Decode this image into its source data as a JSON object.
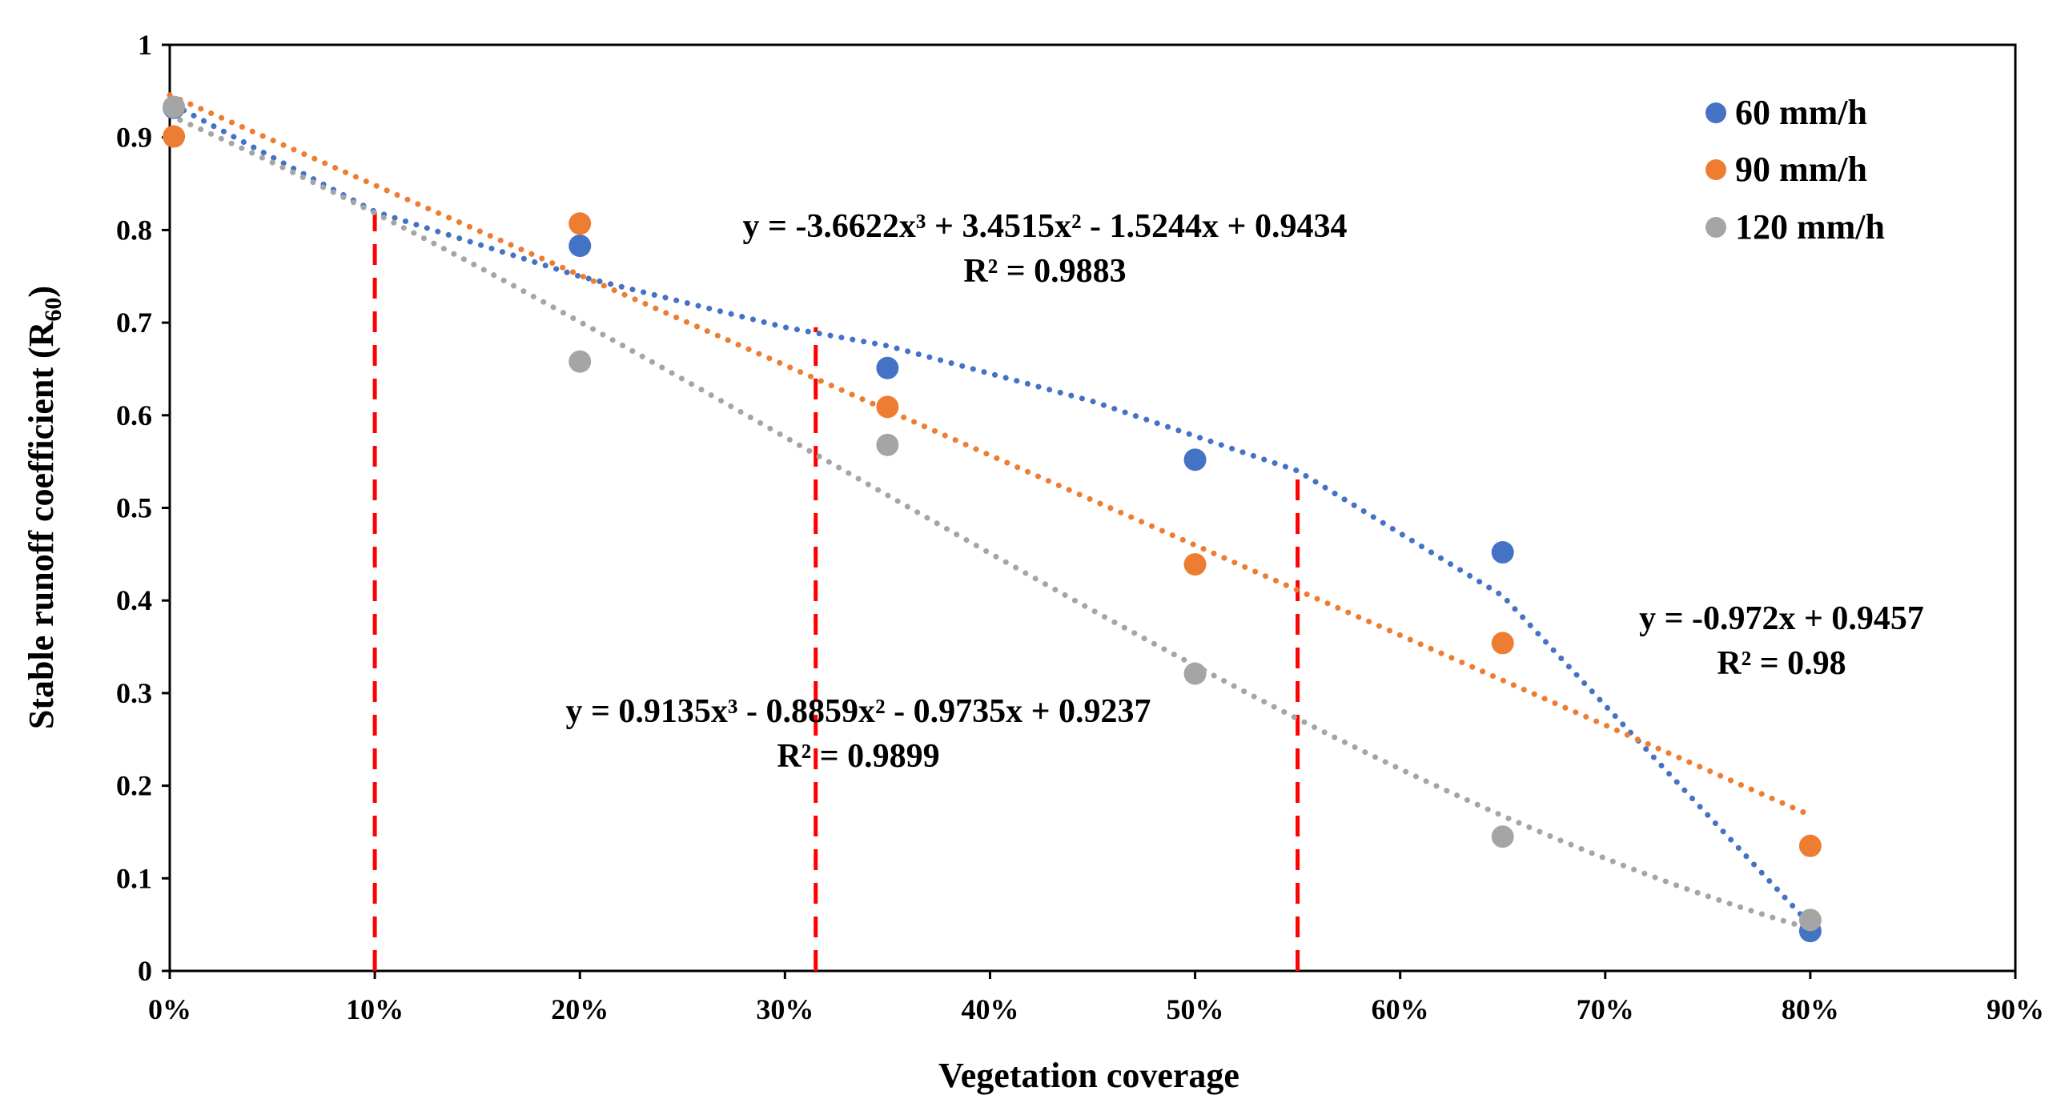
{
  "chart_data": {
    "type": "scatter",
    "title": "",
    "xlabel": "Vegetation coverage",
    "ylabel": "Stable runoff coefficient (R",
    "ylabel_subscript": "60",
    "ylabel_close": ")",
    "xlim": [
      0,
      0.9
    ],
    "ylim": [
      0,
      1
    ],
    "x_ticks": [
      0,
      0.1,
      0.2,
      0.3,
      0.4,
      0.5,
      0.6,
      0.7,
      0.8,
      0.9
    ],
    "x_tick_labels": [
      "0%",
      "10%",
      "20%",
      "30%",
      "40%",
      "50%",
      "60%",
      "70%",
      "80%",
      "90%"
    ],
    "y_ticks": [
      0,
      0.1,
      0.2,
      0.3,
      0.4,
      0.5,
      0.6,
      0.7,
      0.8,
      0.9,
      1
    ],
    "y_tick_labels": [
      "0",
      "0.1",
      "0.2",
      "0.3",
      "0.4",
      "0.5",
      "0.6",
      "0.7",
      "0.8",
      "0.9",
      "1"
    ],
    "grid": false,
    "legend_position": "top-right",
    "series": [
      {
        "name": "60 mm/h",
        "color": "#4472C4",
        "x": [
          0.002,
          0.2,
          0.35,
          0.5,
          0.65,
          0.8
        ],
        "y": [
          0.932,
          0.783,
          0.651,
          0.552,
          0.452,
          0.043
        ],
        "trendline": {
          "type": "piecewise",
          "x": [
            0.002,
            0.1,
            0.2,
            0.3,
            0.35,
            0.45,
            0.55,
            0.65,
            0.8
          ],
          "y": [
            0.935,
            0.82,
            0.75,
            0.695,
            0.675,
            0.615,
            0.54,
            0.405,
            0.05
          ]
        }
      },
      {
        "name": "90 mm/h",
        "color": "#ED7D31",
        "x": [
          0.002,
          0.2,
          0.35,
          0.5,
          0.65,
          0.8
        ],
        "y": [
          0.901,
          0.807,
          0.609,
          0.439,
          0.354,
          0.135
        ],
        "trendline": {
          "type": "linear",
          "slope": -0.972,
          "intercept": 0.9457,
          "x_range": [
            0,
            0.8
          ]
        }
      },
      {
        "name": "120 mm/h",
        "color": "#A5A5A5",
        "x": [
          0.002,
          0.2,
          0.35,
          0.5,
          0.65,
          0.8
        ],
        "y": [
          0.933,
          0.658,
          0.568,
          0.321,
          0.145,
          0.055
        ],
        "trendline": {
          "type": "poly3",
          "coeffs": [
            0.9135,
            -0.8859,
            -0.9735,
            0.9237
          ],
          "x_range": [
            0,
            0.8
          ]
        }
      }
    ],
    "reference_lines": [
      {
        "x": 0.1,
        "y_top": 0.82
      },
      {
        "x": 0.315,
        "y_top": 0.695
      },
      {
        "x": 0.55,
        "y_top": 0.54
      }
    ],
    "reference_line_color": "#FF0000",
    "annotations": [
      {
        "id": "eq-60",
        "text": "y = -3.6622x³ + 3.4515x² - 1.5244x + 0.9434",
        "r2": "R² = 0.9883"
      },
      {
        "id": "eq-90",
        "text": "y = -0.972x + 0.9457",
        "r2": "R² = 0.98"
      },
      {
        "id": "eq-120",
        "text": "y = 0.9135x³ - 0.8859x² - 0.9735x + 0.9237",
        "r2": "R² = 0.9899"
      }
    ]
  }
}
